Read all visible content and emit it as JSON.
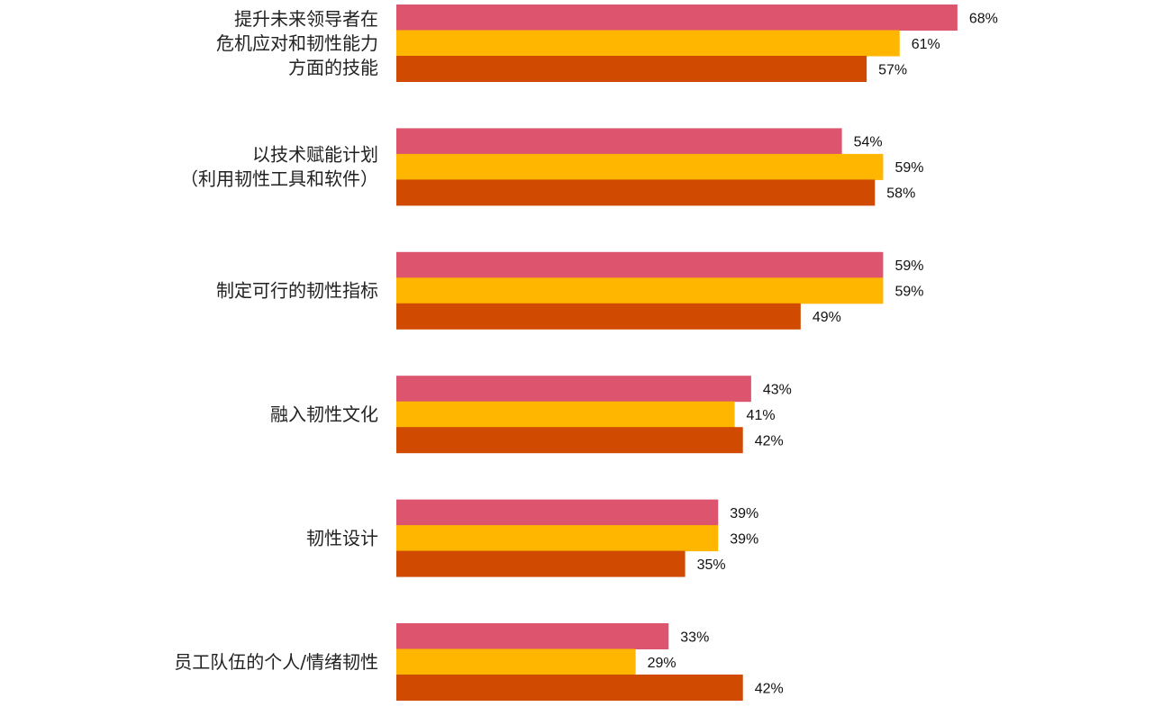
{
  "chart_data": {
    "type": "bar",
    "orientation": "horizontal",
    "title": "",
    "xlabel": "",
    "ylabel": "",
    "xlim": [
      0,
      68
    ],
    "grid": false,
    "legend": "none",
    "value_format": "percent",
    "categories": [
      [
        "提升未来领导者在",
        "危机应对和韧性能力",
        "方面的技能"
      ],
      [
        "以技术赋能计划",
        "（利用韧性工具和软件）"
      ],
      [
        "制定可行的韧性指标"
      ],
      [
        "融入韧性文化"
      ],
      [
        "韧性设计"
      ],
      [
        "员工队伍的个人/情绪韧性"
      ]
    ],
    "series": [
      {
        "color": "#dc546e",
        "values": [
          68,
          54,
          59,
          43,
          39,
          33
        ]
      },
      {
        "color": "#ffb600",
        "values": [
          61,
          59,
          59,
          41,
          39,
          29
        ]
      },
      {
        "color": "#d04a02",
        "values": [
          57,
          58,
          49,
          42,
          35,
          42
        ]
      }
    ]
  }
}
